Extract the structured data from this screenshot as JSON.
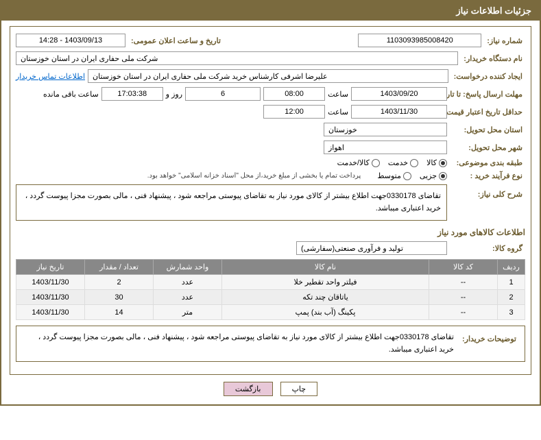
{
  "header_title": "جزئیات اطلاعات نیاز",
  "need_number_label": "شماره نیاز:",
  "need_number": "1103093985008420",
  "announce_label": "تاریخ و ساعت اعلان عمومی:",
  "announce_date": "1403/09/13 - 14:28",
  "buyer_org_label": "نام دستگاه خریدار:",
  "buyer_org": "شرکت ملی حفاری ایران در استان خوزستان",
  "requester_label": "ایجاد کننده درخواست:",
  "requester": "علیرضا اشرفی کارشناس خرید شرکت ملی حفاری ایران در استان خوزستان",
  "contact_link": "اطلاعات تماس خریدار",
  "deadline_label": "مهلت ارسال پاسخ: تا تاریخ:",
  "deadline_date": "1403/09/20",
  "time_label": "ساعت",
  "deadline_time": "08:00",
  "days_remain": "6",
  "days_text": "روز و",
  "time_remain": "17:03:38",
  "remain_text": "ساعت باقی مانده",
  "validity_label": "حداقل تاریخ اعتبار قیمت: تا تاریخ:",
  "validity_date": "1403/11/30",
  "validity_time": "12:00",
  "province_label": "استان محل تحویل:",
  "province": "خوزستان",
  "city_label": "شهر محل تحویل:",
  "city": "اهواز",
  "category_label": "طبقه بندی موضوعی:",
  "cat_goods": "کالا",
  "cat_service": "خدمت",
  "cat_both": "کالا/خدمت",
  "process_label": "نوع فرآیند خرید :",
  "proc_partial": "جزیی",
  "proc_medium": "متوسط",
  "payment_note": "پرداخت تمام یا بخشی از مبلغ خرید،از محل \"اسناد خزانه اسلامی\" خواهد بود.",
  "desc_label": "شرح کلی نیاز:",
  "desc_text": "تقاضای 0330178جهت اطلاع بیشتر از کالای مورد نیاز به تقاضای پیوستی مراجعه شود ، پیشنهاد فنی ، مالی بصورت مجزا پیوست گردد ، خرید اعتباری میباشد.",
  "items_header": "اطلاعات کالاهای مورد نیاز",
  "group_label": "گروه کالا:",
  "group_value": "تولید و فرآوری صنعتی(سفارشی)",
  "columns": {
    "row": "ردیف",
    "code": "کد کالا",
    "name": "نام کالا",
    "unit": "واحد شمارش",
    "qty": "تعداد / مقدار",
    "date": "تاریخ نیاز"
  },
  "rows": [
    {
      "idx": "1",
      "code": "--",
      "name": "فیلتر واحد تقطیر خلا",
      "unit": "عدد",
      "qty": "2",
      "date": "1403/11/30"
    },
    {
      "idx": "2",
      "code": "--",
      "name": "یاتاقان چند تکه",
      "unit": "عدد",
      "qty": "30",
      "date": "1403/11/30"
    },
    {
      "idx": "3",
      "code": "--",
      "name": "پکینگ (آب بند) پمپ",
      "unit": "متر",
      "qty": "14",
      "date": "1403/11/30"
    }
  ],
  "buyer_desc_label": "توضیحات خریدار:",
  "buyer_desc": "تقاضای 0330178جهت اطلاع بیشتر از کالای مورد نیاز به تقاضای پیوستی مراجعه شود ، پیشنهاد فنی ، مالی بصورت مجزا پیوست گردد ، خرید اعتباری میباشد.",
  "btn_print": "چاپ",
  "btn_back": "بازگشت"
}
